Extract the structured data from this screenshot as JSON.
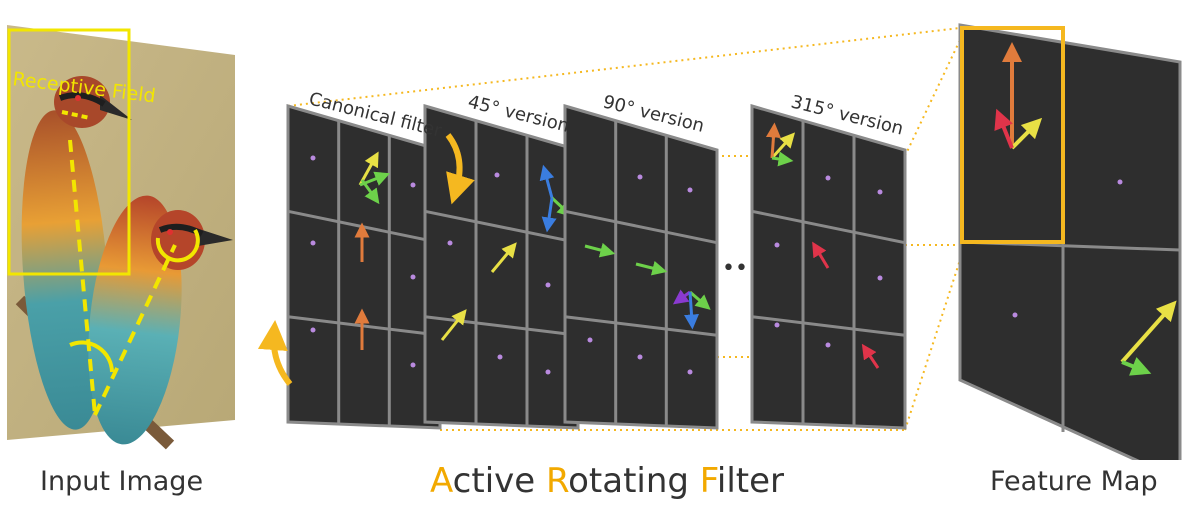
{
  "labels": {
    "receptive_field": "Receptive Field",
    "canonical": "Canonical filter",
    "v45": "45° version",
    "v90": "90° version",
    "v315": "315° version",
    "ellipsis": "•••"
  },
  "captions": {
    "input_image": "Input Image",
    "feature_map": "Feature Map"
  },
  "title": {
    "a_initial": "A",
    "a_rest": "ctive ",
    "r_initial": "R",
    "r_rest": "otating ",
    "f_initial": "F",
    "f_rest": "ilter"
  },
  "colors": {
    "panel": "#2e2e2e",
    "grid": "#8a8a8a",
    "highlight": "#f5b820",
    "yellow_box": "#f2e600",
    "arrow_orange": "#e07b3c",
    "arrow_green": "#6dd14a",
    "arrow_yellow": "#e8e045",
    "arrow_red": "#e0344a",
    "arrow_blue": "#3a7de0",
    "arrow_violet": "#8a3ad0",
    "accent_text": "#f2a900"
  }
}
